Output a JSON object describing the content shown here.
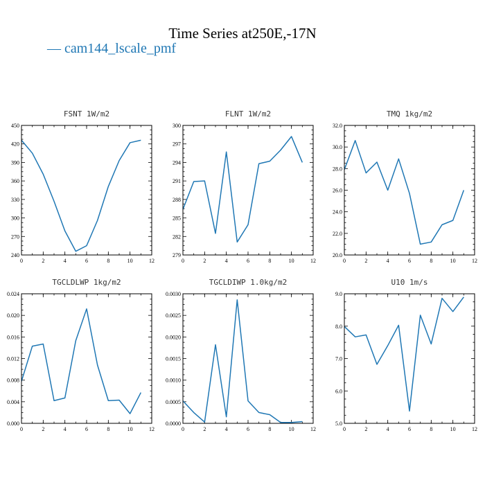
{
  "figure": {
    "title": "Time Series at250E,-17N",
    "legend": "cam144_lscale_pmf",
    "line_color": "#1f77b4"
  },
  "chart_data": [
    {
      "type": "line",
      "title": "FSNT  1W/m2",
      "xlim": [
        0,
        12
      ],
      "ylim": [
        240,
        450
      ],
      "xticks": [
        0,
        2,
        4,
        6,
        8,
        10,
        12
      ],
      "yticks": [
        240,
        270,
        300,
        330,
        360,
        390,
        420,
        450
      ],
      "ytick_labels": [
        "240",
        "270",
        "300",
        "330",
        "360",
        "390",
        "420",
        "450"
      ],
      "x": [
        0,
        1,
        2,
        3,
        4,
        5,
        6,
        7,
        8,
        9,
        10,
        11
      ],
      "series": [
        {
          "values": [
            426,
            405,
            371,
            327,
            279,
            246,
            255,
            296,
            351,
            393,
            422,
            426
          ]
        }
      ]
    },
    {
      "type": "line",
      "title": "FLNT  1W/m2",
      "xlim": [
        0,
        12
      ],
      "ylim": [
        279,
        300
      ],
      "xticks": [
        0,
        2,
        4,
        6,
        8,
        10,
        12
      ],
      "yticks": [
        279,
        282,
        285,
        288,
        291,
        294,
        297,
        300
      ],
      "ytick_labels": [
        "279",
        "282",
        "285",
        "288",
        "291",
        "294",
        "297",
        "300"
      ],
      "x": [
        0,
        1,
        2,
        3,
        4,
        5,
        6,
        7,
        8,
        9,
        10,
        11
      ],
      "series": [
        {
          "values": [
            286.4,
            290.9,
            291.0,
            282.5,
            295.7,
            281.1,
            283.9,
            293.8,
            294.2,
            296.0,
            298.2,
            294.0
          ]
        }
      ]
    },
    {
      "type": "line",
      "title": "TMQ  1kg/m2",
      "xlim": [
        0,
        12
      ],
      "ylim": [
        20,
        32
      ],
      "xticks": [
        0,
        2,
        4,
        6,
        8,
        10,
        12
      ],
      "yticks": [
        20,
        22,
        24,
        26,
        28,
        30,
        32
      ],
      "ytick_labels": [
        "20.0",
        "22.0",
        "24.0",
        "26.0",
        "28.0",
        "30.0",
        "32.0"
      ],
      "x": [
        0,
        1,
        2,
        3,
        4,
        5,
        6,
        7,
        8,
        9,
        10,
        11
      ],
      "series": [
        {
          "values": [
            27.9,
            30.6,
            27.6,
            28.6,
            26.0,
            28.9,
            25.7,
            21.0,
            21.2,
            22.8,
            23.2,
            26.0
          ]
        }
      ]
    },
    {
      "type": "line",
      "title": "TGCLDLWP  1kg/m2",
      "xlim": [
        0,
        12
      ],
      "ylim": [
        0,
        0.024
      ],
      "xticks": [
        0,
        2,
        4,
        6,
        8,
        10,
        12
      ],
      "yticks": [
        0,
        0.004,
        0.008,
        0.012,
        0.016,
        0.02,
        0.024
      ],
      "ytick_labels": [
        "0.000",
        "0.004",
        "0.008",
        "0.012",
        "0.016",
        "0.020",
        "0.024"
      ],
      "x": [
        0,
        1,
        2,
        3,
        4,
        5,
        6,
        7,
        8,
        9,
        10,
        11
      ],
      "series": [
        {
          "values": [
            0.0078,
            0.0143,
            0.0147,
            0.0042,
            0.0047,
            0.0153,
            0.0212,
            0.0108,
            0.0042,
            0.0043,
            0.0018,
            0.0057
          ]
        }
      ]
    },
    {
      "type": "line",
      "title": "TGCLDIWP  1.0kg/m2",
      "xlim": [
        0,
        12
      ],
      "ylim": [
        0,
        0.003
      ],
      "xticks": [
        0,
        2,
        4,
        6,
        8,
        10,
        12
      ],
      "yticks": [
        0,
        0.0005,
        0.001,
        0.0015,
        0.002,
        0.0025,
        0.003
      ],
      "ytick_labels": [
        "0.0000",
        "0.0005",
        "0.0010",
        "0.0015",
        "0.0020",
        "0.0025",
        "0.0030"
      ],
      "x": [
        0,
        1,
        2,
        3,
        4,
        5,
        6,
        7,
        8,
        9,
        10,
        11
      ],
      "series": [
        {
          "values": [
            0.00052,
            0.00025,
            3e-05,
            0.00182,
            0.00015,
            0.00286,
            0.00052,
            0.00025,
            0.0002,
            2e-05,
            2e-05,
            4e-05
          ]
        }
      ]
    },
    {
      "type": "line",
      "title": "U10  1m/s",
      "xlim": [
        0,
        12
      ],
      "ylim": [
        5,
        9
      ],
      "xticks": [
        0,
        2,
        4,
        6,
        8,
        10,
        12
      ],
      "yticks": [
        5,
        6,
        7,
        8,
        9
      ],
      "ytick_labels": [
        "5.0",
        "6.0",
        "7.0",
        "8.0",
        "9.0"
      ],
      "x": [
        0,
        1,
        2,
        3,
        4,
        5,
        6,
        7,
        8,
        9,
        10,
        11
      ],
      "series": [
        {
          "values": [
            7.99,
            7.67,
            7.73,
            6.82,
            7.4,
            8.03,
            5.38,
            8.34,
            7.45,
            8.86,
            8.45,
            8.9
          ]
        }
      ]
    }
  ]
}
